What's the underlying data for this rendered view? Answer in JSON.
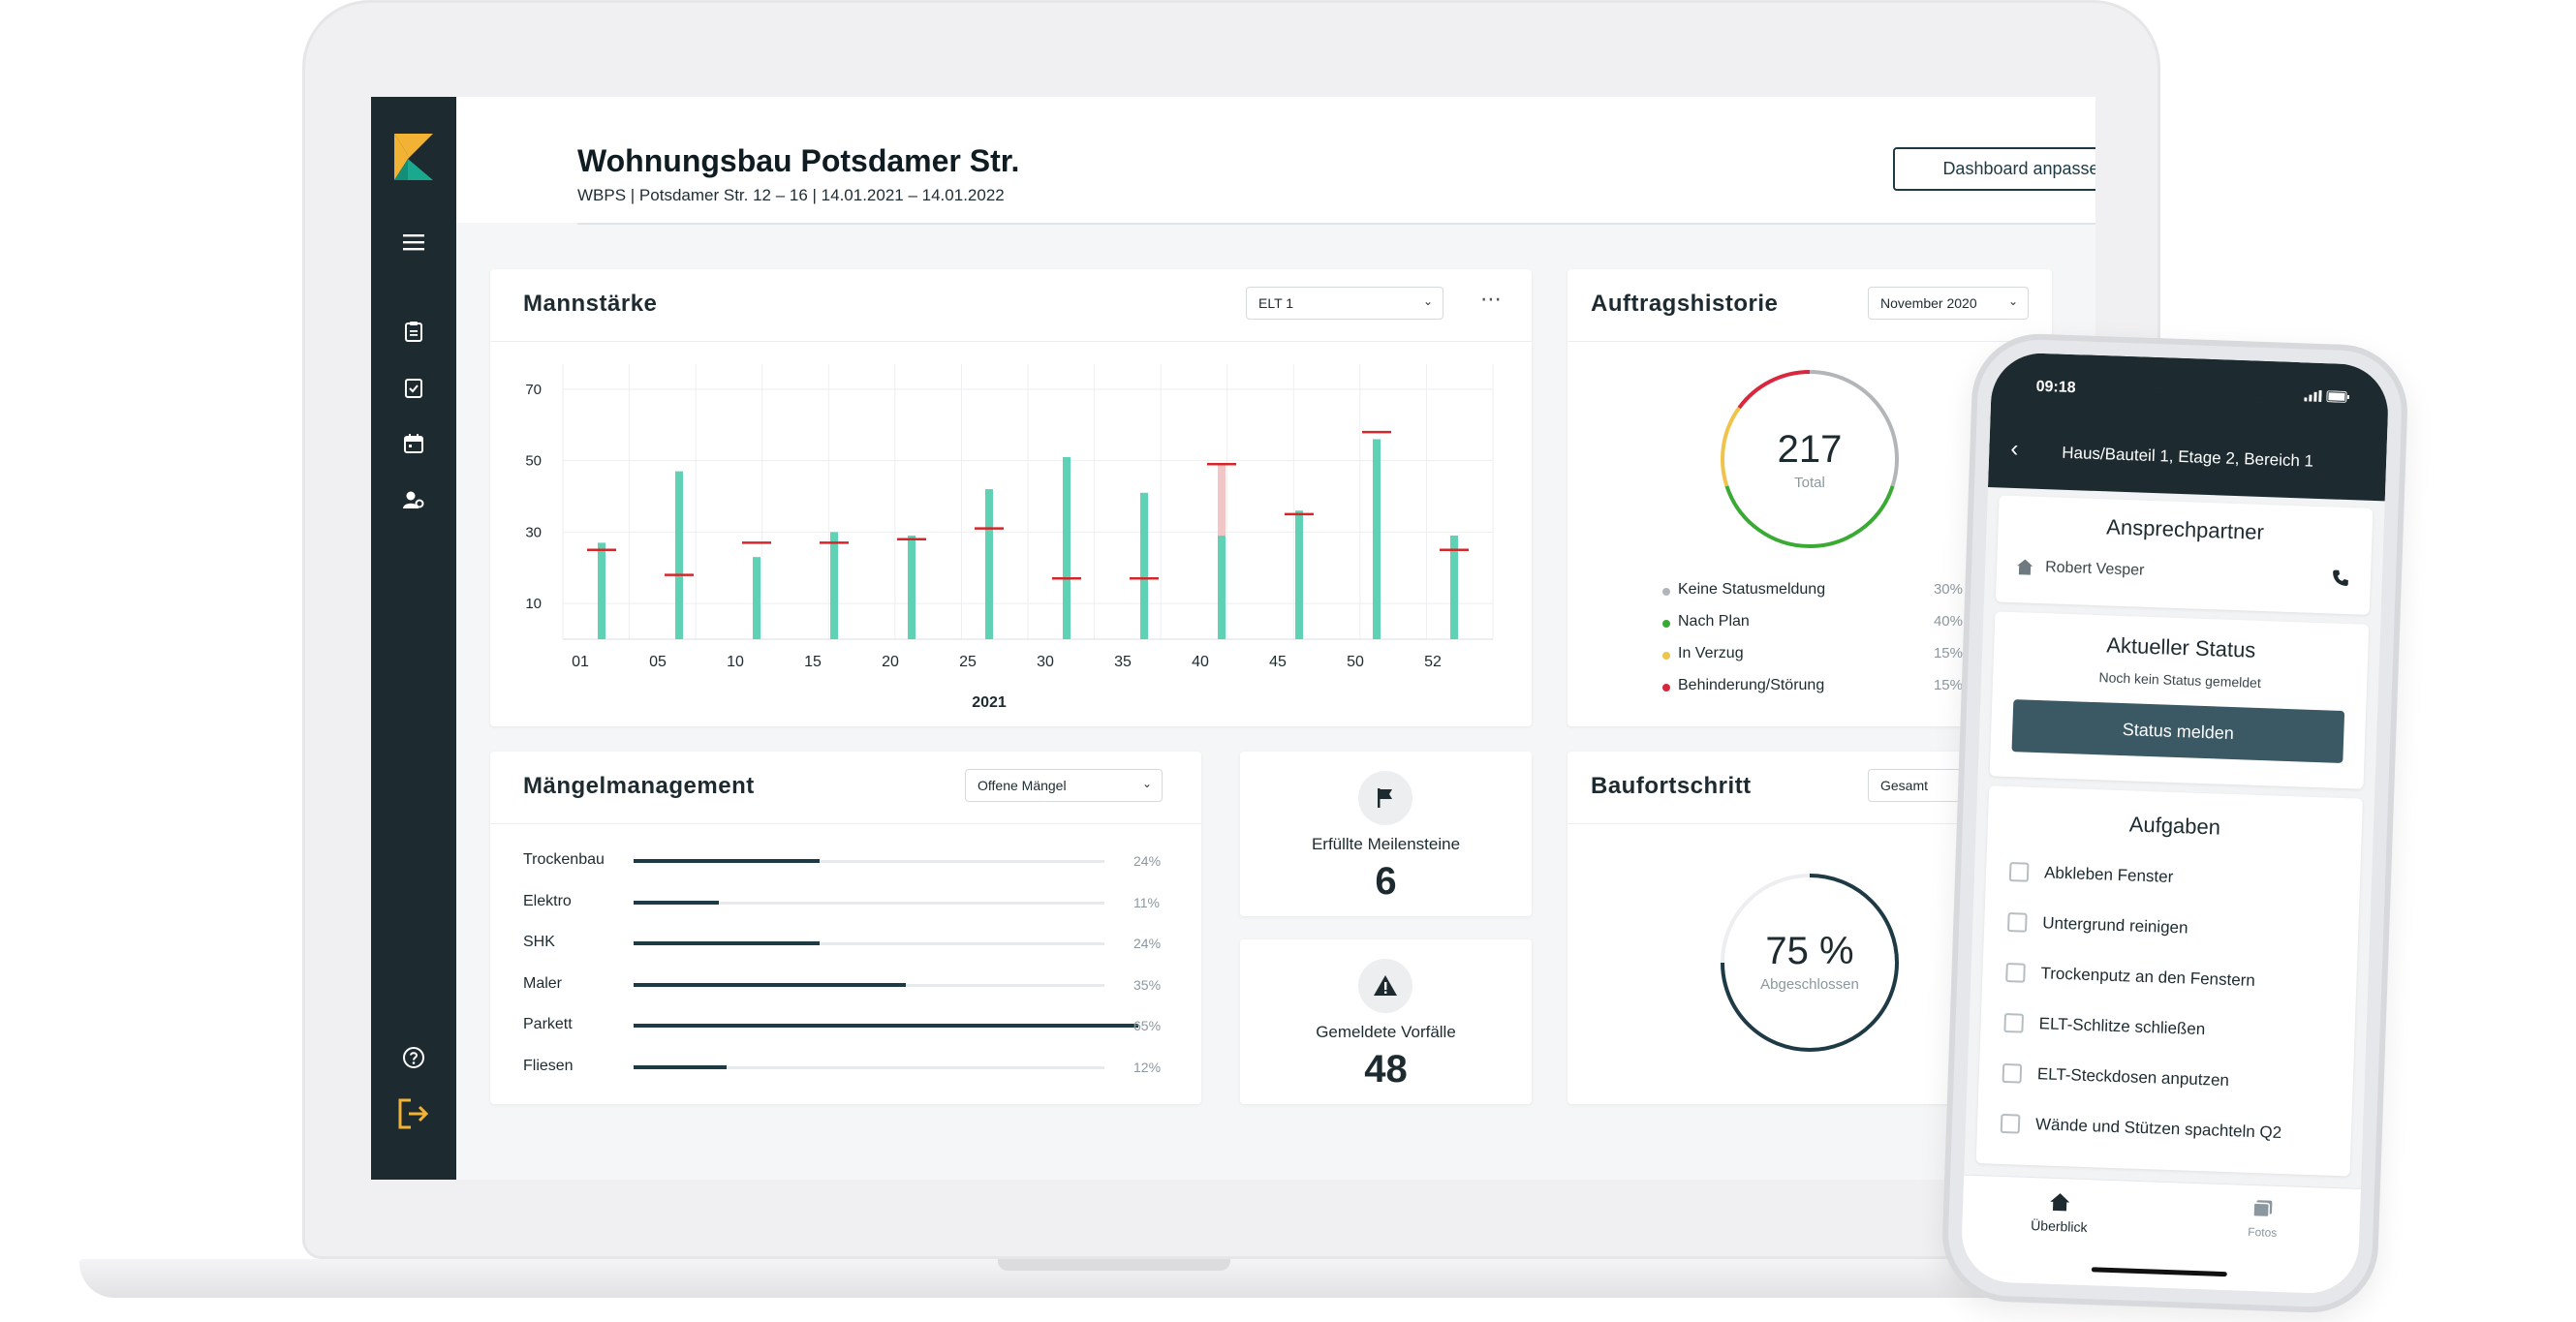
{
  "project": {
    "title": "Wohnungsbau Potsdamer Str.",
    "subtitle": "WBPS | Potsdamer Str. 12 – 16 | 14.01.2021 – 14.01.2022",
    "customize_button": "Dashboard anpassen"
  },
  "sidebar": {
    "icons": [
      "logo",
      "menu-icon",
      "clipboard-icon",
      "checklist-icon",
      "calendar-icon",
      "user-settings-icon",
      "help-icon",
      "logout-icon"
    ]
  },
  "mannstaerke": {
    "title": "Mannstärke",
    "filter": "ELT 1",
    "more": "⋯"
  },
  "chart_data": {
    "type": "bar",
    "title": "Mannstärke",
    "xlabel": "2021",
    "ylabel": "",
    "x_ticks": [
      "01",
      "05",
      "10",
      "15",
      "20",
      "25",
      "30",
      "35",
      "40",
      "45",
      "50",
      "52"
    ],
    "y_ticks": [
      "70",
      "50",
      "30",
      "10"
    ],
    "ylim": [
      0,
      77
    ],
    "series": [
      {
        "values": [
          27,
          47,
          23,
          30,
          29,
          42,
          51,
          41,
          29,
          36,
          56,
          29
        ],
        "color": "#5fd1b4"
      },
      {
        "values": [
          0,
          0,
          0,
          0,
          0,
          0,
          0,
          0,
          20,
          0,
          0,
          0
        ],
        "color": "#f3c6c6"
      }
    ],
    "targets": {
      "values": [
        25,
        18,
        27,
        27,
        28,
        31,
        17,
        17,
        49,
        35,
        58,
        25
      ],
      "color": "#d6262a"
    },
    "grid": true
  },
  "auftragshistorie": {
    "title": "Auftragshistorie",
    "filter": "November 2020",
    "total_value": "217",
    "total_label": "Total",
    "legend": [
      {
        "label": "Keine Statusmeldung",
        "value": "30%",
        "color": "#b3b6b8"
      },
      {
        "label": "Nach Plan",
        "value": "40%",
        "color": "#3aaa35"
      },
      {
        "label": "In Verzug",
        "value": "15%",
        "color": "#f0c44c"
      },
      {
        "label": "Behinderung/Störung",
        "value": "15%",
        "color": "#d8283e"
      }
    ]
  },
  "maengel": {
    "title": "Mängelmanagement",
    "filter": "Offene Mängel",
    "rows": [
      {
        "label": "Trockenbau",
        "value": "24%",
        "fraction": 0.24
      },
      {
        "label": "Elektro",
        "value": "11%",
        "fraction": 0.11
      },
      {
        "label": "SHK",
        "value": "24%",
        "fraction": 0.24
      },
      {
        "label": "Maler",
        "value": "35%",
        "fraction": 0.35
      },
      {
        "label": "Parkett",
        "value": "65%",
        "fraction": 0.65
      },
      {
        "label": "Fliesen",
        "value": "12%",
        "fraction": 0.12
      }
    ]
  },
  "meilensteine": {
    "label": "Erfüllte Meilensteine",
    "value": "6"
  },
  "vorfaelle": {
    "label": "Gemeldete Vorfälle",
    "value": "48"
  },
  "baufortschritt": {
    "title": "Baufortschritt",
    "filter": "Gesamt",
    "value": "75 %",
    "progress": 0.75,
    "label": "Abgeschlossen"
  },
  "phone": {
    "time": "09:18",
    "nav_title": "Haus/Bauteil 1, Etage 2, Bereich 1",
    "contact_title": "Ansprechpartner",
    "contact_name": "Robert Vesper",
    "status_title": "Aktueller Status",
    "status_text": "Noch kein Status gemeldet",
    "status_button": "Status melden",
    "tasks_title": "Aufgaben",
    "tasks": [
      "Abkleben Fenster",
      "Untergrund reinigen",
      "Trockenputz an den Fenstern",
      "ELT-Schlitze schließen",
      "ELT-Steckdosen anputzen",
      "Wände und Stützen spachteln Q2"
    ],
    "tabs": [
      {
        "label": "Überblick",
        "icon": "home-icon"
      },
      {
        "label": "Fotos",
        "icon": "photos-icon"
      }
    ]
  }
}
